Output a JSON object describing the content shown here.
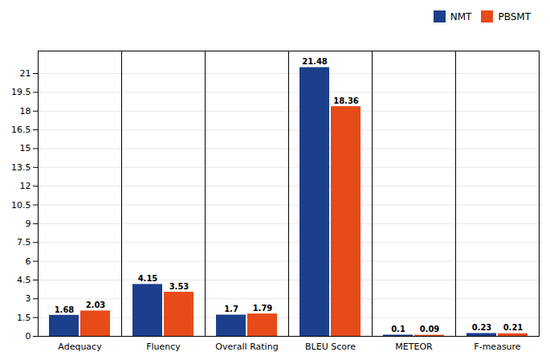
{
  "chart_data": {
    "type": "bar",
    "categories": [
      "Adequacy",
      "Fluency",
      "Overall Rating",
      "BLEU Score",
      "METEOR",
      "F-measure"
    ],
    "series": [
      {
        "name": "NMT",
        "color": "#1B3F8B",
        "values": [
          1.68,
          4.15,
          1.7,
          21.48,
          0.1,
          0.23
        ]
      },
      {
        "name": "PBSMT",
        "color": "#E84B1A",
        "values": [
          2.03,
          3.53,
          1.79,
          18.36,
          0.09,
          0.21
        ]
      }
    ],
    "ylim": [
      0,
      22.8
    ],
    "yticks": [
      0,
      1.5,
      3,
      4.5,
      6,
      7.5,
      9,
      10.5,
      12,
      13.5,
      15,
      16.5,
      18,
      19.5,
      21
    ],
    "grid": true,
    "legend": "upper right",
    "data_labels": true
  }
}
